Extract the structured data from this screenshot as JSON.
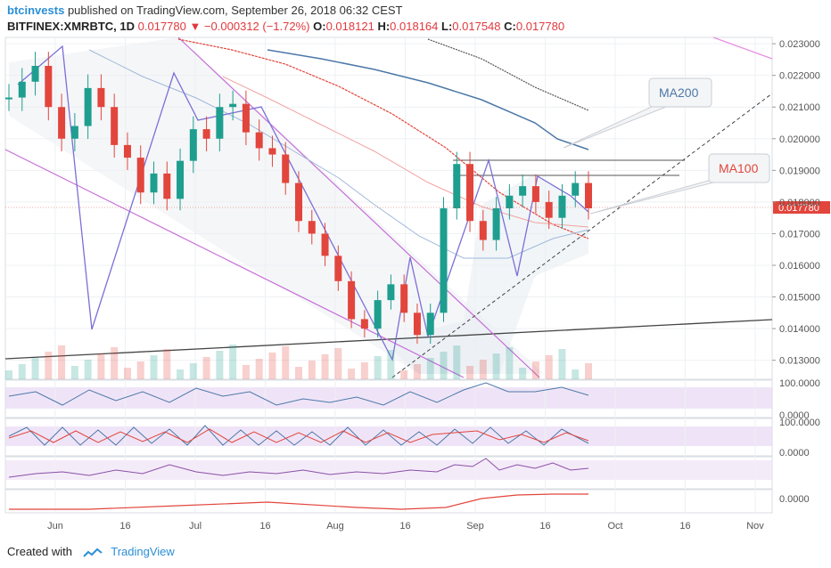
{
  "header": {
    "author": "btcinvests",
    "published": "published on TradingView.com, September 26, 2018 06:32 CEST"
  },
  "ohlc": {
    "symbol": "BITFINEX:XMRBTC, 1D",
    "last": "0.017780",
    "change": "▼ −0.000312 (−1.72%)",
    "o_label": "O:",
    "o": "0.018121",
    "h_label": "H:",
    "h": "0.018164",
    "l_label": "L:",
    "l": "0.017548",
    "c_label": "C:",
    "c": "0.017780"
  },
  "footer": {
    "created": "Created with",
    "brand": "TradingView"
  },
  "colors": {
    "up": "#1e9e8f",
    "down": "#e2453c",
    "ma100": "#e2453c",
    "ma200": "#4c78a8",
    "pattern": "#7b6fd6",
    "channel": "#c66fd8",
    "price_tag": "#e2453c"
  },
  "chart_data": {
    "type": "line",
    "title": "BITFINEX:XMRBTC, 1D",
    "y_ticks": [
      "0.023000",
      "0.022000",
      "0.021000",
      "0.020000",
      "0.019000",
      "0.018000",
      "0.017000",
      "0.016000",
      "0.015000",
      "0.014000",
      "0.013000"
    ],
    "x_ticks": [
      "Jun",
      "16",
      "Jul",
      "16",
      "Aug",
      "16",
      "Sep",
      "16",
      "Oct",
      "16",
      "Nov"
    ],
    "ylim": [
      0.0124,
      0.0232
    ],
    "annotations": [
      {
        "text": "MA200",
        "color": "#4c78a8"
      },
      {
        "text": "MA100",
        "color": "#e2453c"
      }
    ],
    "price_label": "0.017780",
    "series": [
      {
        "values": [
          0.0213,
          0.0218,
          0.0223,
          0.021,
          0.02,
          0.0204,
          0.0216,
          0.021,
          0.0198,
          0.0194,
          0.0183,
          0.0189,
          0.0181,
          0.0193,
          0.0203,
          0.02,
          0.021,
          0.0211,
          0.0202,
          0.0197,
          0.0195,
          0.0186,
          0.0174,
          0.017,
          0.0163,
          0.0155,
          0.0143,
          0.014,
          0.0149,
          0.0154,
          0.0145,
          0.0138,
          0.0145,
          0.0178,
          0.0192,
          0.0174,
          0.0168,
          0.0178,
          0.0182,
          0.0185,
          0.018,
          0.0175,
          0.0182,
          0.0186,
          0.0178
        ]
      },
      {
        "name": "MA100",
        "values": [
          0.0223,
          0.0222,
          0.022,
          0.0218,
          0.0216,
          0.0214,
          0.0211,
          0.0208,
          0.0205,
          0.0202,
          0.0199,
          0.0196,
          0.0193,
          0.019,
          0.0188,
          0.0186,
          0.0184,
          0.0182,
          0.018,
          0.0178,
          0.0177,
          0.0176
        ]
      },
      {
        "name": "MA200",
        "values": [
          0.0228,
          0.0226,
          0.0223,
          0.022,
          0.0216,
          0.0212,
          0.0208,
          0.0205,
          0.0203,
          0.0201,
          0.0199,
          0.0197
        ]
      }
    ],
    "oscillators": [
      {
        "ticks": [
          "100.0000",
          "0.0000"
        ]
      },
      {
        "ticks": [
          "100.0000",
          "0.0000"
        ]
      },
      {
        "ticks": []
      },
      {
        "ticks": [
          "0.0000"
        ]
      }
    ]
  }
}
